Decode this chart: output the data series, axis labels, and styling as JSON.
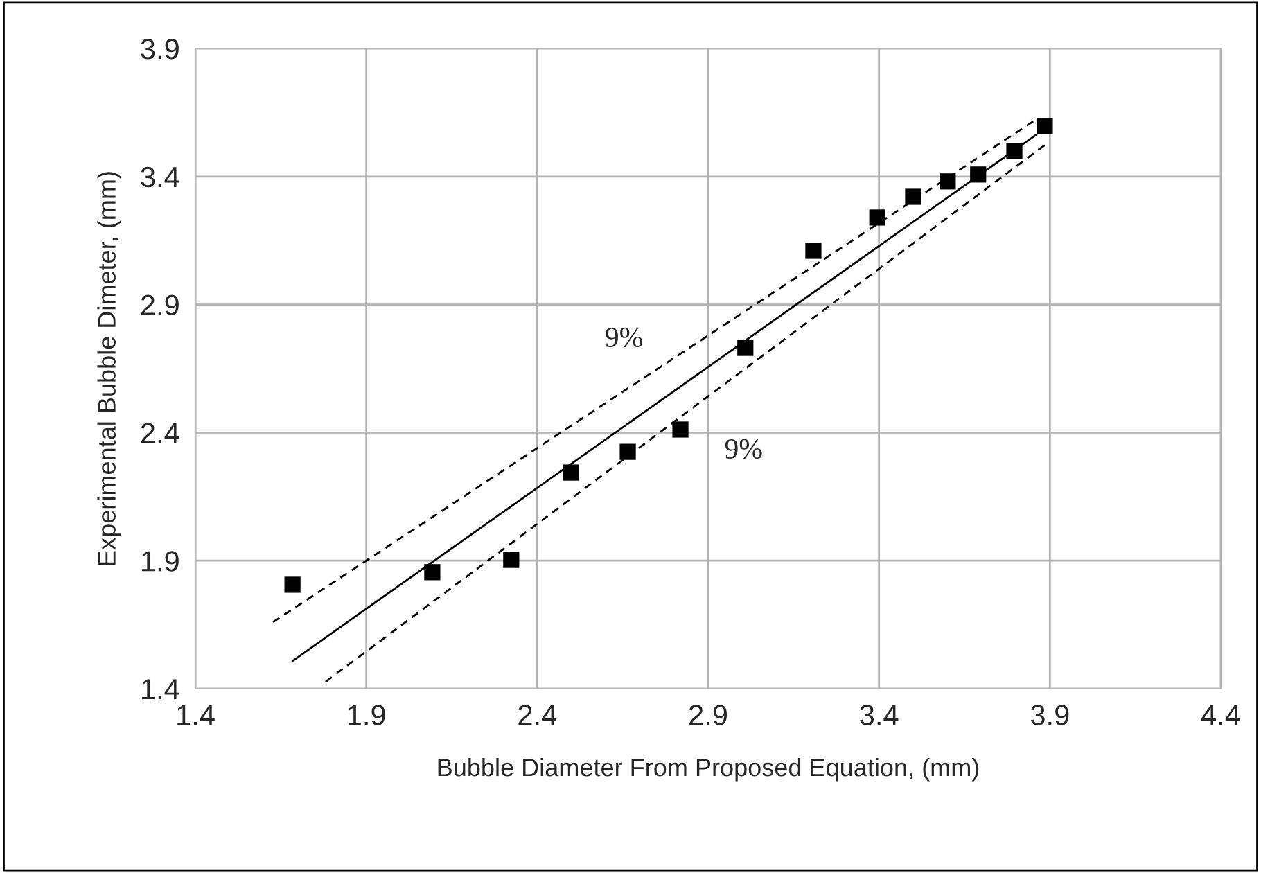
{
  "chart_data": {
    "type": "scatter",
    "xlabel": "Bubble Diameter From Proposed Equation, (mm)",
    "ylabel": "Experimental Bubble Dimeter, (mm)",
    "series": [
      {
        "color": "#000000",
        "marker": "square",
        "x": [
          1.684,
          2.093,
          2.324,
          2.498,
          2.665,
          2.819,
          3.009,
          3.208,
          3.395,
          3.5,
          3.601,
          3.69,
          3.796,
          3.885
        ],
        "values": [
          1.806,
          1.855,
          1.903,
          2.244,
          2.325,
          2.412,
          2.731,
          3.11,
          3.24,
          3.321,
          3.381,
          3.408,
          3.5,
          3.597
        ]
      },
      {
        "type": "line",
        "color": "#000000",
        "line_style": "solid",
        "x": [
          1.684,
          3.861
        ],
        "values": [
          1.508,
          3.564
        ]
      },
      {
        "type": "line",
        "color": "#000000",
        "line_style": "dashed",
        "x": [
          1.627,
          3.861
        ],
        "values": [
          1.66,
          3.624
        ]
      },
      {
        "type": "line",
        "color": "#000000",
        "line_style": "dashed",
        "x": [
          1.781,
          3.889
        ],
        "values": [
          1.427,
          3.527
        ]
      }
    ],
    "xlim": [
      1.4,
      4.4
    ],
    "xticks": [
      1.4,
      1.9,
      2.4,
      2.9,
      3.4,
      3.9,
      4.4
    ],
    "ylim": [
      1.4,
      3.9
    ],
    "yticks": [
      1.4,
      1.9,
      2.4,
      2.9,
      3.4,
      3.9
    ],
    "grid": true,
    "legend": false,
    "annotations": [
      "9%",
      "9%"
    ]
  }
}
